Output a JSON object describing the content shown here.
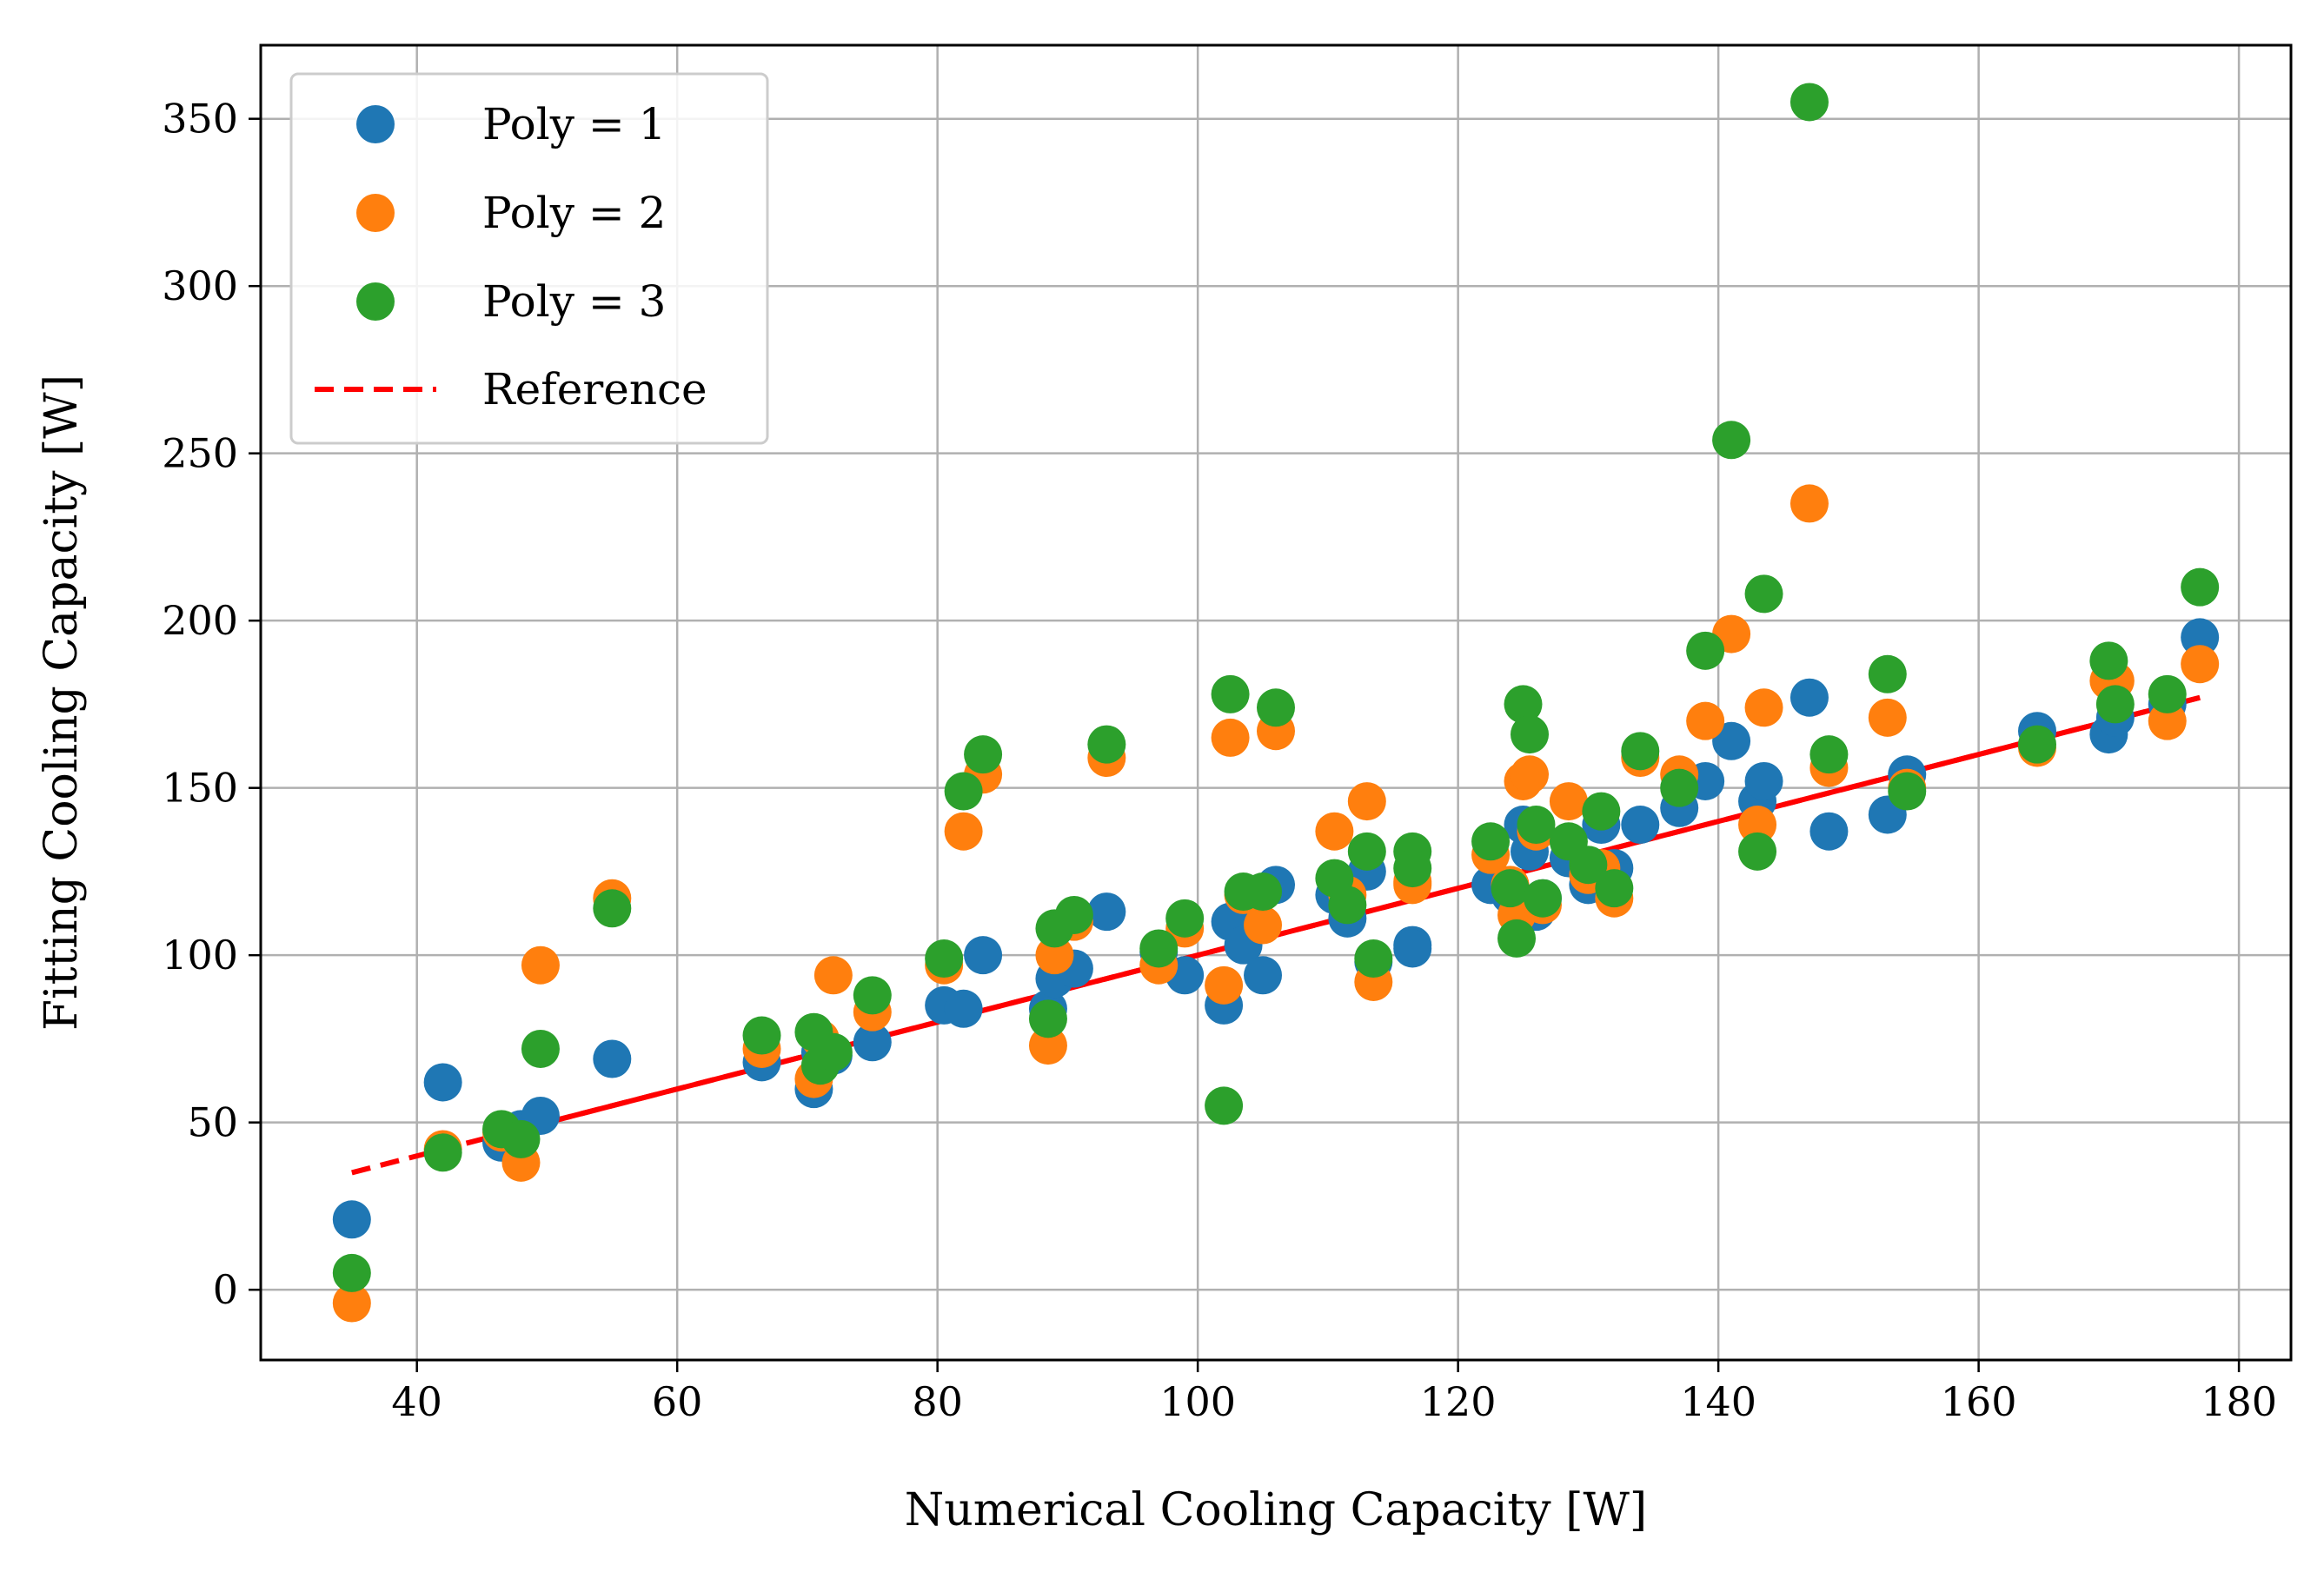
{
  "chart_data": {
    "type": "scatter",
    "title": "",
    "xlabel": "Numerical Cooling Capacity [W]",
    "ylabel": "Fitting Cooling Capacity [W]",
    "xlim": [
      28,
      184
    ],
    "ylim": [
      -21,
      372
    ],
    "xticks": [
      40,
      60,
      80,
      100,
      120,
      140,
      160,
      180
    ],
    "yticks": [
      0,
      50,
      100,
      150,
      200,
      250,
      300,
      350
    ],
    "grid": true,
    "legend_position": "top-left",
    "x": [
      35,
      42,
      46.5,
      48,
      49.5,
      55,
      66.5,
      70.5,
      71,
      72,
      75,
      80.5,
      82,
      83.5,
      88.5,
      89,
      90.5,
      93,
      97,
      99,
      102,
      102.5,
      103.5,
      105,
      106,
      110.5,
      111.5,
      113,
      113.5,
      116.5,
      116.5,
      122.5,
      124,
      124.5,
      125,
      125.5,
      126,
      126.5,
      128.5,
      130,
      131,
      132,
      134,
      137,
      139,
      141,
      143,
      143.5,
      147,
      148.5,
      153,
      154.5,
      164.5,
      170,
      170.5,
      174.5,
      177
    ],
    "series": [
      {
        "name": "Poly = 1",
        "color": "#1f77b4",
        "values": [
          21,
          62,
          44,
          48,
          52,
          69,
          68,
          60,
          71,
          70,
          74,
          85,
          84,
          100,
          84,
          93,
          96,
          113,
          101,
          94,
          85,
          110,
          103,
          94,
          121,
          118,
          111,
          125,
          98,
          103,
          102,
          121,
          118,
          115,
          139,
          131,
          113,
          117,
          129,
          121,
          139,
          126,
          139,
          144,
          152,
          164,
          146,
          152,
          177,
          137,
          142,
          154,
          167,
          166,
          171,
          175,
          195
        ]
      },
      {
        "name": "Poly = 2",
        "color": "#ff7f0e",
        "values": [
          -4,
          42,
          47,
          38,
          97,
          117,
          72,
          63,
          75,
          94,
          83,
          97,
          137,
          154,
          73,
          100,
          110,
          159,
          97,
          108,
          91,
          165,
          118,
          109,
          167,
          137,
          118,
          146,
          92,
          121,
          122,
          130,
          121,
          112,
          152,
          154,
          137,
          115,
          146,
          124,
          126,
          117,
          159,
          154,
          170,
          196,
          139,
          174,
          235,
          156,
          171,
          150,
          162,
          182,
          182,
          170,
          187
        ]
      },
      {
        "name": "Poly = 3",
        "color": "#2ca02c",
        "values": [
          5,
          41,
          48,
          45,
          72,
          114,
          76,
          77,
          67,
          71,
          88,
          99,
          149,
          160,
          81,
          108,
          112,
          163,
          102,
          111,
          55,
          178,
          119,
          119,
          174,
          123,
          115,
          131,
          99,
          131,
          126,
          134,
          120,
          105,
          175,
          166,
          139,
          117,
          134,
          127,
          143,
          120,
          161,
          150,
          191,
          254,
          131,
          208,
          355,
          160,
          184,
          149,
          163,
          188,
          175,
          178,
          210
        ]
      }
    ],
    "reference": {
      "name": "Reference",
      "color": "#ff0000",
      "x": [
        35,
        177
      ],
      "y": [
        35,
        177
      ]
    }
  }
}
